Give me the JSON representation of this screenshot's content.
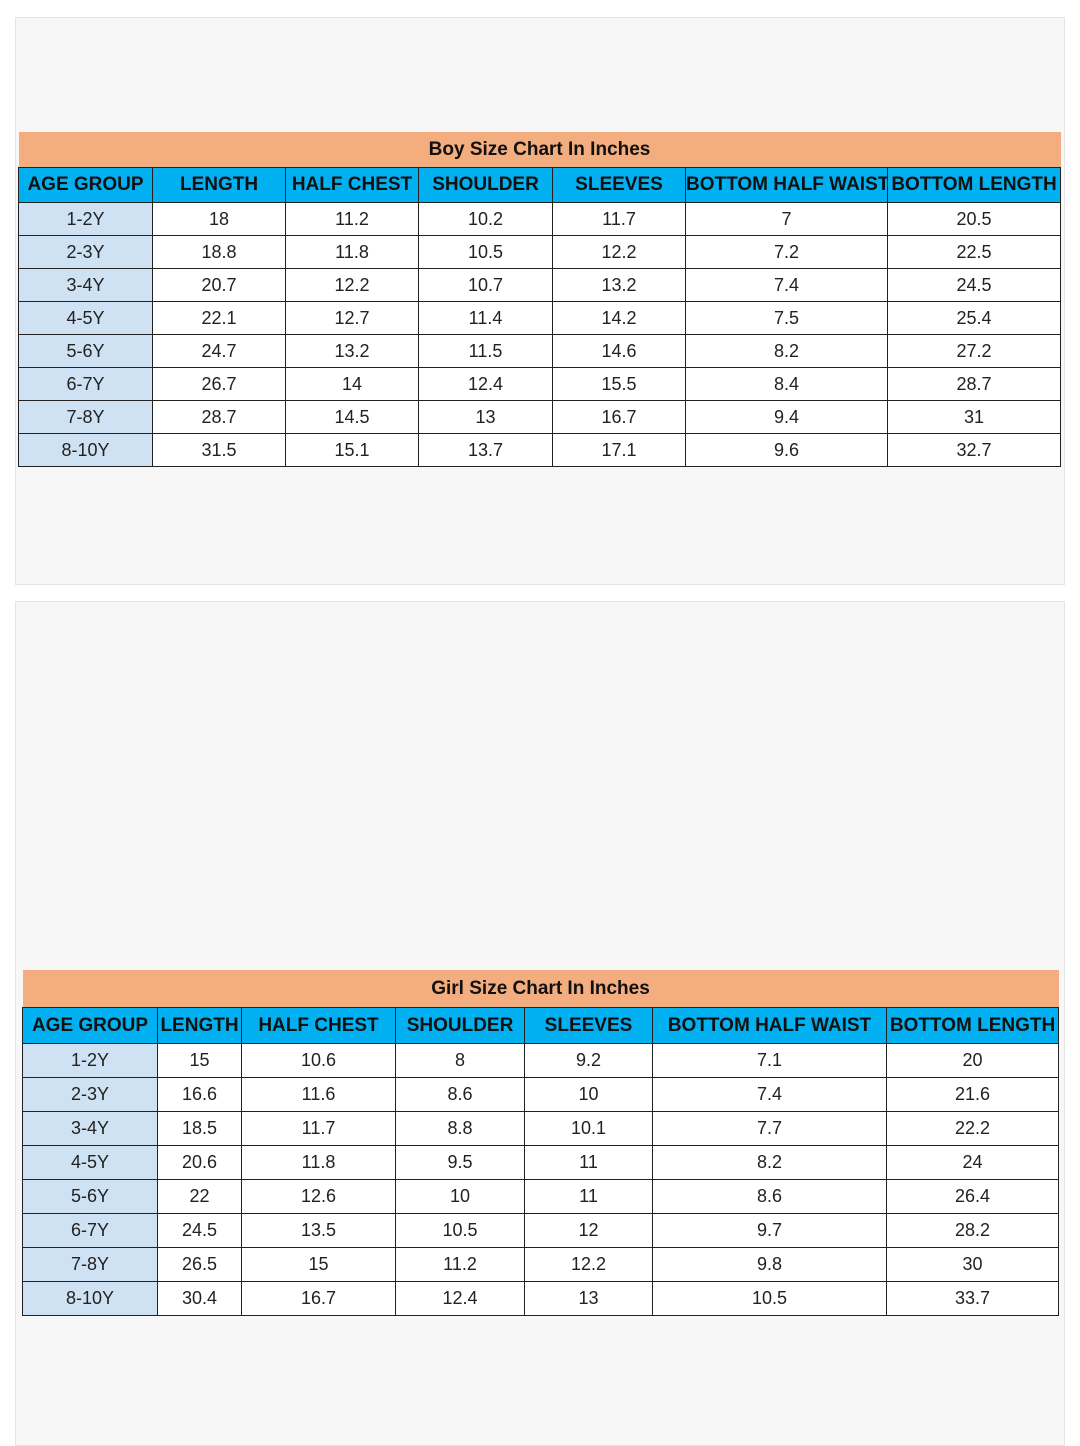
{
  "colors": {
    "title_bg": "#f4ad7f",
    "header_bg": "#00b0f0",
    "age_bg": "#cfe2f3"
  },
  "boy": {
    "title": "Boy Size Chart In Inches",
    "headers": [
      "AGE GROUP",
      "LENGTH",
      "HALF CHEST",
      "SHOULDER",
      "SLEEVES",
      "BOTTOM HALF WAIST",
      "BOTTOM LENGTH"
    ],
    "rows": [
      [
        "1-2Y",
        "18",
        "11.2",
        "10.2",
        "11.7",
        "7",
        "20.5"
      ],
      [
        "2-3Y",
        "18.8",
        "11.8",
        "10.5",
        "12.2",
        "7.2",
        "22.5"
      ],
      [
        "3-4Y",
        "20.7",
        "12.2",
        "10.7",
        "13.2",
        "7.4",
        "24.5"
      ],
      [
        "4-5Y",
        "22.1",
        "12.7",
        "11.4",
        "14.2",
        "7.5",
        "25.4"
      ],
      [
        "5-6Y",
        "24.7",
        "13.2",
        "11.5",
        "14.6",
        "8.2",
        "27.2"
      ],
      [
        "6-7Y",
        "26.7",
        "14",
        "12.4",
        "15.5",
        "8.4",
        "28.7"
      ],
      [
        "7-8Y",
        "28.7",
        "14.5",
        "13",
        "16.7",
        "9.4",
        "31"
      ],
      [
        "8-10Y",
        "31.5",
        "15.1",
        "13.7",
        "17.1",
        "9.6",
        "32.7"
      ]
    ]
  },
  "girl": {
    "title": "Girl Size Chart In Inches",
    "headers": [
      "AGE GROUP",
      "LENGTH",
      "HALF CHEST",
      "SHOULDER",
      "SLEEVES",
      "BOTTOM HALF WAIST",
      "BOTTOM LENGTH"
    ],
    "rows": [
      [
        "1-2Y",
        "15",
        "10.6",
        "8",
        "9.2",
        "7.1",
        "20"
      ],
      [
        "2-3Y",
        "16.6",
        "11.6",
        "8.6",
        "10",
        "7.4",
        "21.6"
      ],
      [
        "3-4Y",
        "18.5",
        "11.7",
        "8.8",
        "10.1",
        "7.7",
        "22.2"
      ],
      [
        "4-5Y",
        "20.6",
        "11.8",
        "9.5",
        "11",
        "8.2",
        "24"
      ],
      [
        "5-6Y",
        "22",
        "12.6",
        "10",
        "11",
        "8.6",
        "26.4"
      ],
      [
        "6-7Y",
        "24.5",
        "13.5",
        "10.5",
        "12",
        "9.7",
        "28.2"
      ],
      [
        "7-8Y",
        "26.5",
        "15",
        "11.2",
        "12.2",
        "9.8",
        "30"
      ],
      [
        "8-10Y",
        "30.4",
        "16.7",
        "12.4",
        "13",
        "10.5",
        "33.7"
      ]
    ]
  }
}
